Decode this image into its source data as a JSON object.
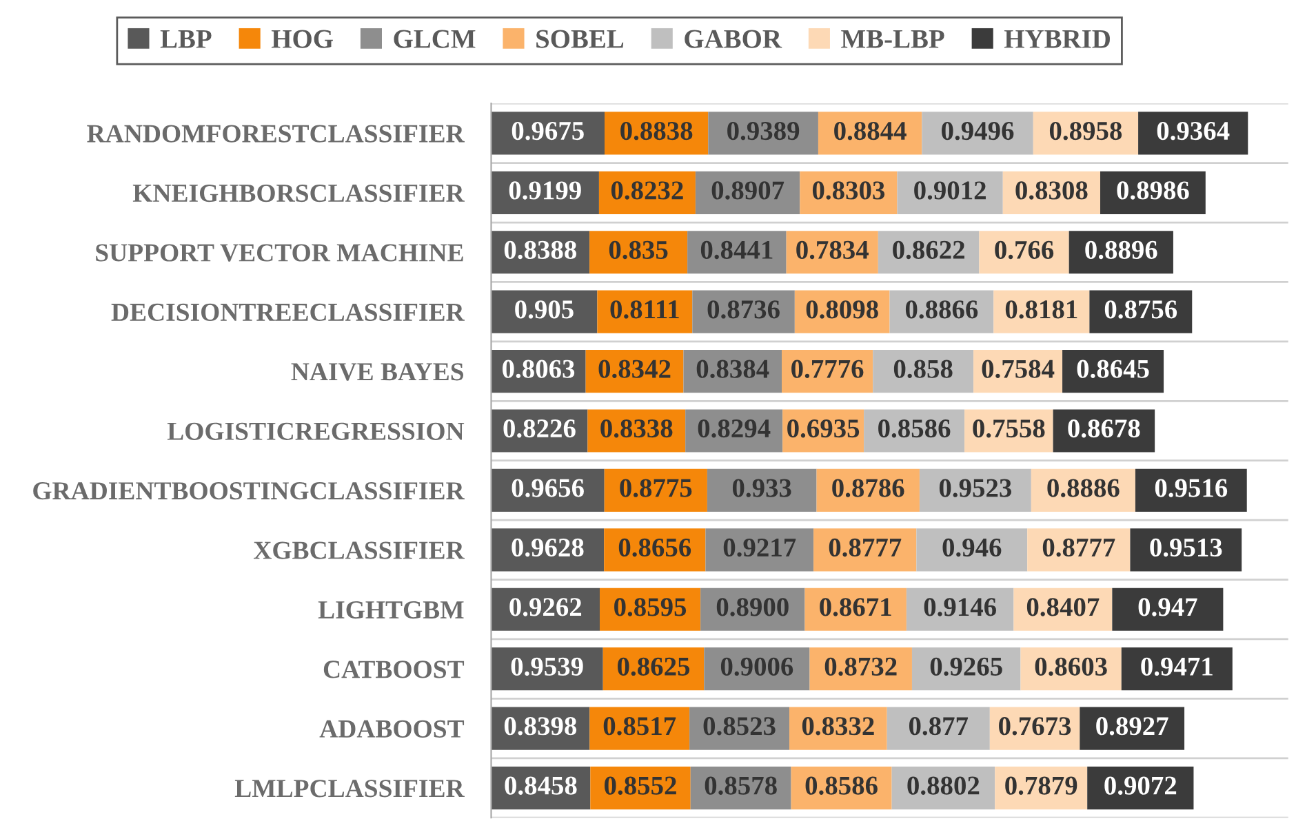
{
  "chart_data": {
    "type": "bar",
    "orientation": "horizontal",
    "stacked": true,
    "legend": "top",
    "grid": "y",
    "tick_labels": "y",
    "xlim": [
      0,
      6.8
    ],
    "categories": [
      "RANDOMFORESTCLASSIFIER",
      "KNEIGHBORSCLASSIFIER",
      "SUPPORT VECTOR MACHINE",
      "DECISIONTREECLASSIFIER",
      "NAIVE BAYES",
      "LOGISTICREGRESSION",
      "GRADIENTBOOSTINGCLASSIFIER",
      "XGBCLASSIFIER",
      "LIGHTGBM",
      "CATBOOST",
      "ADABOOST",
      "LMLPCLASSIFIER"
    ],
    "series": [
      {
        "name": "LBP",
        "color": "#595959",
        "values": [
          0.9675,
          0.9199,
          0.8388,
          0.905,
          0.8063,
          0.8226,
          0.9656,
          0.9628,
          0.9262,
          0.9539,
          0.8398,
          0.8458
        ],
        "value_labels": [
          "0.9675",
          "0.9199",
          "0.8388",
          "0.905",
          "0.8063",
          "0.8226",
          "0.9656",
          "0.9628",
          "0.9262",
          "0.9539",
          "0.8398",
          "0.8458"
        ]
      },
      {
        "name": "HOG",
        "color": "#f5870a",
        "values": [
          0.8838,
          0.8232,
          0.835,
          0.8111,
          0.8342,
          0.8338,
          0.8775,
          0.8656,
          0.8595,
          0.8625,
          0.8517,
          0.8552
        ],
        "value_labels": [
          "0.8838",
          "0.8232",
          "0.835",
          "0.8111",
          "0.8342",
          "0.8338",
          "0.8775",
          "0.8656",
          "0.8595",
          "0.8625",
          "0.8517",
          "0.8552"
        ]
      },
      {
        "name": "GLCM",
        "color": "#8e8e8e",
        "values": [
          0.9389,
          0.8907,
          0.8441,
          0.8736,
          0.8384,
          0.8294,
          0.933,
          0.9217,
          0.89,
          0.9006,
          0.8523,
          0.8578
        ],
        "value_labels": [
          "0.9389",
          "0.8907",
          "0.8441",
          "0.8736",
          "0.8384",
          "0.8294",
          "0.933",
          "0.9217",
          "0.8900",
          "0.9006",
          "0.8523",
          "0.8578"
        ]
      },
      {
        "name": "SOBEL",
        "color": "#fbb36b",
        "values": [
          0.8844,
          0.8303,
          0.7834,
          0.8098,
          0.7776,
          0.6935,
          0.8786,
          0.8777,
          0.8671,
          0.8732,
          0.8332,
          0.8586
        ],
        "value_labels": [
          "0.8844",
          "0.8303",
          "0.7834",
          "0.8098",
          "0.7776",
          "0.6935",
          "0.8786",
          "0.8777",
          "0.8671",
          "0.8732",
          "0.8332",
          "0.8586"
        ]
      },
      {
        "name": "GABOR",
        "color": "#bfbfbf",
        "values": [
          0.9496,
          0.9012,
          0.8622,
          0.8866,
          0.858,
          0.8586,
          0.9523,
          0.946,
          0.9146,
          0.9265,
          0.877,
          0.8802
        ],
        "value_labels": [
          "0.9496",
          "0.9012",
          "0.8622",
          "0.8866",
          "0.858",
          "0.8586",
          "0.9523",
          "0.946",
          "0.9146",
          "0.9265",
          "0.877",
          "0.8802"
        ]
      },
      {
        "name": "MB-LBP",
        "color": "#fdd9b5",
        "values": [
          0.8958,
          0.8308,
          0.766,
          0.8181,
          0.7584,
          0.7558,
          0.8886,
          0.8777,
          0.8407,
          0.8603,
          0.7673,
          0.7879
        ],
        "value_labels": [
          "0.8958",
          "0.8308",
          "0.766",
          "0.8181",
          "0.7584",
          "0.7558",
          "0.8886",
          "0.8777",
          "0.8407",
          "0.8603",
          "0.7673",
          "0.7879"
        ]
      },
      {
        "name": "HYBRID",
        "color": "#3b3b3b",
        "values": [
          0.9364,
          0.8986,
          0.8896,
          0.8756,
          0.8645,
          0.8678,
          0.9516,
          0.9513,
          0.947,
          0.9471,
          0.8927,
          0.9072
        ],
        "value_labels": [
          "0.9364",
          "0.8986",
          "0.8896",
          "0.8756",
          "0.8645",
          "0.8678",
          "0.9516",
          "0.9513",
          "0.947",
          "0.9471",
          "0.8927",
          "0.9072"
        ]
      }
    ]
  }
}
